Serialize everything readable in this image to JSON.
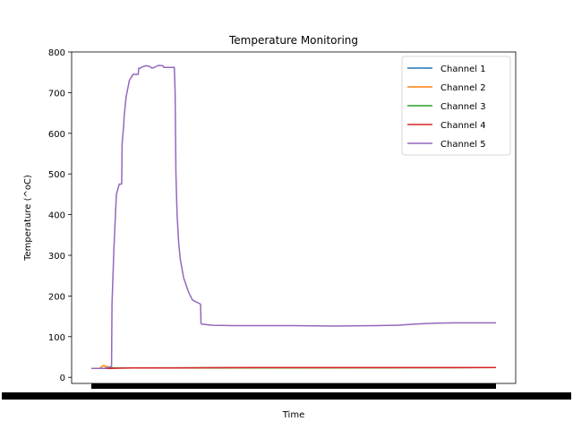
{
  "chart_data": {
    "type": "line",
    "title": "Temperature Monitoring",
    "xlabel": "Time",
    "ylabel": "Temperature (^oC)",
    "ylim": [
      -15,
      800
    ],
    "yticks": [
      0,
      100,
      200,
      300,
      400,
      500,
      600,
      700,
      800
    ],
    "xlim": [
      0,
      100
    ],
    "legend_position": "top-right",
    "grid": false,
    "colors": [
      "#1f77b4",
      "#ff7f0e",
      "#2ca02c",
      "#d62728",
      "#9467bd"
    ],
    "series": [
      {
        "name": "Channel 1",
        "x": [
          0,
          3,
          4,
          5,
          100
        ],
        "y": [
          22,
          22,
          23,
          23,
          24
        ]
      },
      {
        "name": "Channel 2",
        "x": [
          0,
          2,
          3,
          3.5,
          4,
          5,
          6,
          100
        ],
        "y": [
          22,
          22,
          29,
          27,
          26,
          24,
          23,
          24
        ]
      },
      {
        "name": "Channel 3",
        "x": [
          0,
          3,
          4,
          5,
          100
        ],
        "y": [
          22,
          22,
          23,
          23,
          24
        ]
      },
      {
        "name": "Channel 4",
        "x": [
          0,
          5,
          10,
          20,
          40,
          60,
          80,
          100
        ],
        "y": [
          22,
          22,
          23,
          23,
          24,
          24,
          24,
          24
        ]
      },
      {
        "name": "Channel 5",
        "x": [
          0,
          3.6,
          5,
          5.1,
          5.6,
          6.2,
          6.9,
          7.5,
          7.6,
          8.0,
          8.1,
          8.6,
          9.4,
          10.3,
          10.4,
          11.6,
          11.7,
          12.1,
          12.5,
          13.5,
          14.5,
          15.0,
          15.5,
          16.6,
          17.7,
          17.9,
          18.1,
          20.5,
          20.7,
          20.9,
          21.2,
          21.6,
          22.0,
          22.8,
          24.0,
          25.0,
          27.0,
          27.1,
          27.2,
          30,
          35,
          40,
          50,
          60,
          70,
          75,
          75.5,
          80,
          85,
          90,
          95,
          100
        ],
        "y": [
          22,
          22,
          27,
          180,
          320,
          450,
          475,
          475,
          575,
          620,
          640,
          690,
          730,
          745,
          745,
          745,
          760,
          760,
          763,
          766,
          764,
          760,
          762,
          767,
          766,
          762,
          762,
          762,
          700,
          500,
          400,
          330,
          290,
          245,
          210,
          190,
          180,
          133,
          131,
          128,
          127,
          127,
          127,
          126,
          127,
          128,
          128,
          131,
          133,
          134,
          134,
          134
        ]
      }
    ]
  }
}
